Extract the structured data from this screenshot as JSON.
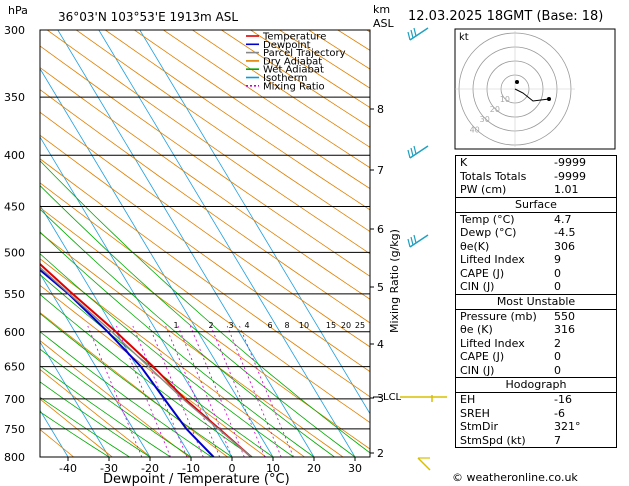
{
  "header": {
    "pressure_unit": "hPa",
    "location": "36°03'N  103°53'E  1913m  ASL",
    "km_label": "km",
    "asl_label": "ASL",
    "datetime": "12.03.2025  18GMT  (Base: 18)"
  },
  "legend": [
    {
      "label": "Temperature",
      "color": "#e00000"
    },
    {
      "label": "Dewpoint",
      "color": "#0000cc"
    },
    {
      "label": "Parcel Trajectory",
      "color": "#888888"
    },
    {
      "label": "Dry Adiabat",
      "color": "#e08000"
    },
    {
      "label": "Wet Adiabat",
      "color": "#00aa00"
    },
    {
      "label": "Isotherm",
      "color": "#00a0e0"
    },
    {
      "label": "Mixing Ratio",
      "color": "#cc00cc"
    }
  ],
  "axes": {
    "xlabel": "Dewpoint / Temperature (°C)",
    "right_label": "Mixing Ratio (g/kg)",
    "pressure_ticks": [
      "300",
      "350",
      "400",
      "450",
      "500",
      "550",
      "600",
      "650",
      "700",
      "750",
      "800"
    ],
    "temp_ticks": [
      "-40",
      "-30",
      "-20",
      "-10",
      "0",
      "10",
      "20",
      "30"
    ],
    "km_ticks": [
      "8",
      "7",
      "6",
      "5",
      "4",
      "3",
      "2"
    ],
    "lcl_label": "LCL",
    "mixing_ratio_labels": [
      "1",
      "2",
      "3",
      "4",
      "6",
      "8",
      "10",
      "15",
      "20",
      "25"
    ],
    "kt_label": "kt",
    "hodo_ring_labels": [
      "10",
      "20",
      "30",
      "40"
    ]
  },
  "chart_data": {
    "type": "line",
    "title": "",
    "xlabel": "Dewpoint / Temperature (°C)",
    "ylabel": "hPa",
    "xlim": [
      -45,
      35
    ],
    "ylim": [
      800,
      300
    ],
    "y_scale": "log",
    "series": [
      {
        "name": "Temperature",
        "color": "#e00000",
        "points": [
          [
            800,
            4.7
          ],
          [
            750,
            1
          ],
          [
            700,
            -3
          ],
          [
            650,
            -6
          ],
          [
            600,
            -10
          ],
          [
            550,
            -15
          ],
          [
            500,
            -20
          ],
          [
            450,
            -26
          ],
          [
            400,
            -34
          ],
          [
            350,
            -42
          ],
          [
            300,
            -51
          ]
        ]
      },
      {
        "name": "Dewpoint",
        "color": "#0000cc",
        "points": [
          [
            800,
            -4.5
          ],
          [
            750,
            -7
          ],
          [
            700,
            -8
          ],
          [
            650,
            -9
          ],
          [
            600,
            -12
          ],
          [
            550,
            -16
          ],
          [
            500,
            -22
          ],
          [
            450,
            -28
          ],
          [
            400,
            -37
          ],
          [
            350,
            -45
          ],
          [
            300,
            -54
          ]
        ]
      },
      {
        "name": "Parcel Trajectory",
        "color": "#888888",
        "points": [
          [
            800,
            4.7
          ],
          [
            700,
            -3.5
          ],
          [
            600,
            -11
          ],
          [
            500,
            -21
          ],
          [
            400,
            -35
          ],
          [
            300,
            -55
          ]
        ]
      }
    ]
  },
  "indices": {
    "k": {
      "label": "K",
      "value": "-9999"
    },
    "tt": {
      "label": "Totals Totals",
      "value": "-9999"
    },
    "pw": {
      "label": "PW (cm)",
      "value": "1.01"
    }
  },
  "surface": {
    "title": "Surface",
    "rows": [
      {
        "label": "Temp (°C)",
        "value": "4.7"
      },
      {
        "label": "Dewp (°C)",
        "value": "-4.5"
      },
      {
        "label": "θe(K)",
        "value": "306"
      },
      {
        "label": "Lifted Index",
        "value": "9"
      },
      {
        "label": "CAPE (J)",
        "value": "0"
      },
      {
        "label": "CIN (J)",
        "value": "0"
      }
    ]
  },
  "most_unstable": {
    "title": "Most Unstable",
    "rows": [
      {
        "label": "Pressure (mb)",
        "value": "550"
      },
      {
        "label": "θe (K)",
        "value": "316"
      },
      {
        "label": "Lifted Index",
        "value": "2"
      },
      {
        "label": "CAPE (J)",
        "value": "0"
      },
      {
        "label": "CIN (J)",
        "value": "0"
      }
    ]
  },
  "hodograph": {
    "title": "Hodograph",
    "rows": [
      {
        "label": "EH",
        "value": "-16"
      },
      {
        "label": "SREH",
        "value": "-6"
      },
      {
        "label": "StmDir",
        "value": "321°"
      },
      {
        "label": "StmSpd (kt)",
        "value": "7"
      }
    ]
  },
  "footer": {
    "credit": "© weatheronline.co.uk"
  }
}
